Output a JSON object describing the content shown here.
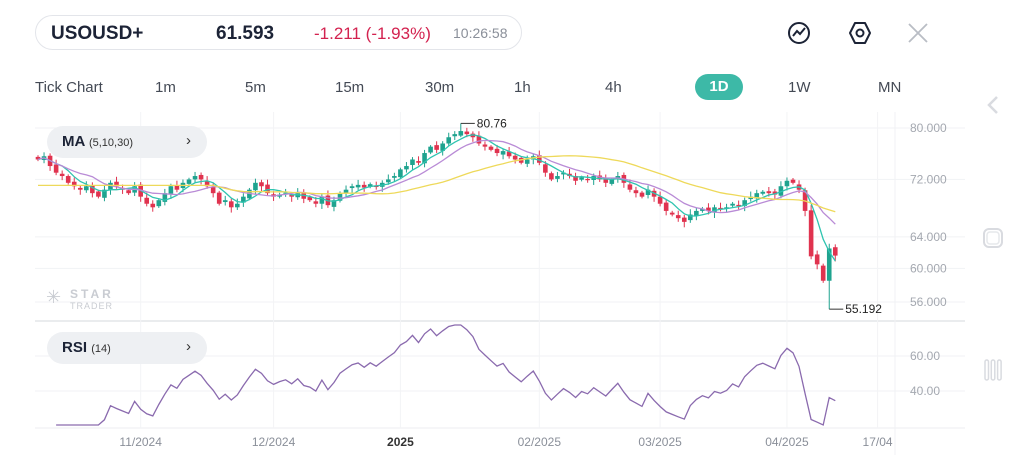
{
  "quote": {
    "symbol": "USOUSD+",
    "price": "61.593",
    "change": "-1.211 (-1.93%)",
    "time": "10:26:58",
    "change_color": "#d3224f"
  },
  "toolbar_icons": [
    "indicator-icon",
    "settings-hexagon-icon",
    "close-icon"
  ],
  "timeframes": [
    {
      "label": "Tick Chart"
    },
    {
      "label": "1m"
    },
    {
      "label": "5m"
    },
    {
      "label": "15m"
    },
    {
      "label": "30m"
    },
    {
      "label": "1h"
    },
    {
      "label": "4h"
    },
    {
      "label": "1D",
      "active": true
    },
    {
      "label": "1W"
    },
    {
      "label": "MN"
    }
  ],
  "ma_chip": {
    "name": "MA",
    "params": "(5,10,30)",
    "chevron": "›"
  },
  "rsi_chip": {
    "name": "RSI",
    "params": "(14)",
    "chevron": "›"
  },
  "watermark": {
    "line1": "STAR",
    "line2": "TRADER"
  },
  "colors": {
    "up": "#1fa38f",
    "down": "#e0334f",
    "ma5": "#2fc4b0",
    "ma10": "#b98bd6",
    "ma30": "#eed95a",
    "rsi": "#8a6aae",
    "accent": "#3db9a7"
  },
  "chart_data": {
    "type": "candlestick",
    "price_scale": "log",
    "price_ticks": [
      "80.000",
      "72.000",
      "64.000",
      "60.000",
      "56.000"
    ],
    "rsi_ticks": [
      "60.00",
      "40.00"
    ],
    "x_ticks": [
      {
        "label": "11/2024",
        "index": 17
      },
      {
        "label": "12/2024",
        "index": 39
      },
      {
        "label": "2025",
        "index": 60,
        "bold": true
      },
      {
        "label": "02/2025",
        "index": 83
      },
      {
        "label": "03/2025",
        "index": 103
      },
      {
        "label": "04/2025",
        "index": 124
      },
      {
        "label": "17/04",
        "index": 139
      }
    ],
    "closes": [
      75,
      75.5,
      74,
      73,
      72.5,
      71.5,
      71,
      70.5,
      71,
      70,
      69.5,
      70.5,
      71.5,
      71,
      70.5,
      70,
      71,
      69.5,
      68.5,
      68,
      69,
      70,
      71,
      70.5,
      71.5,
      72,
      72.5,
      72,
      71,
      70,
      68.5,
      69,
      68,
      68.5,
      69.5,
      70.5,
      71.5,
      71,
      70,
      69.5,
      69.8,
      70,
      69.5,
      70,
      69.2,
      69,
      68.5,
      69.5,
      68.3,
      69,
      70,
      70.5,
      71,
      71.2,
      70.8,
      71.3,
      71,
      71.5,
      72,
      72.5,
      73.5,
      74,
      75,
      74.5,
      76,
      77,
      76.5,
      77.5,
      78.5,
      79,
      79.5,
      79,
      78.5,
      77.5,
      77,
      76.5,
      76,
      76.3,
      75.5,
      75,
      74.5,
      75,
      75.5,
      74.5,
      73,
      72,
      72.5,
      73,
      72.5,
      71.8,
      72.3,
      72,
      72.5,
      72,
      71.5,
      72,
      72.5,
      71.5,
      70.5,
      70,
      69.5,
      70.5,
      69.5,
      68.5,
      67.5,
      67,
      66.5,
      66,
      67,
      67.5,
      67.8,
      67.5,
      68,
      67.8,
      68,
      68.5,
      68.2,
      69,
      69.5,
      70,
      70.2,
      70,
      69.8,
      71,
      71.8,
      71.5,
      70.5,
      67.5,
      61.5,
      60.5,
      58.5,
      62.5,
      61.593
    ],
    "ma_periods": [
      5,
      10,
      30
    ],
    "rsi_period": 14,
    "annotations": [
      {
        "label": "80.76",
        "value": 80.76,
        "index": 70,
        "kind": "high"
      },
      {
        "label": "55.192",
        "value": 55.192,
        "index": 131,
        "kind": "low"
      }
    ]
  }
}
